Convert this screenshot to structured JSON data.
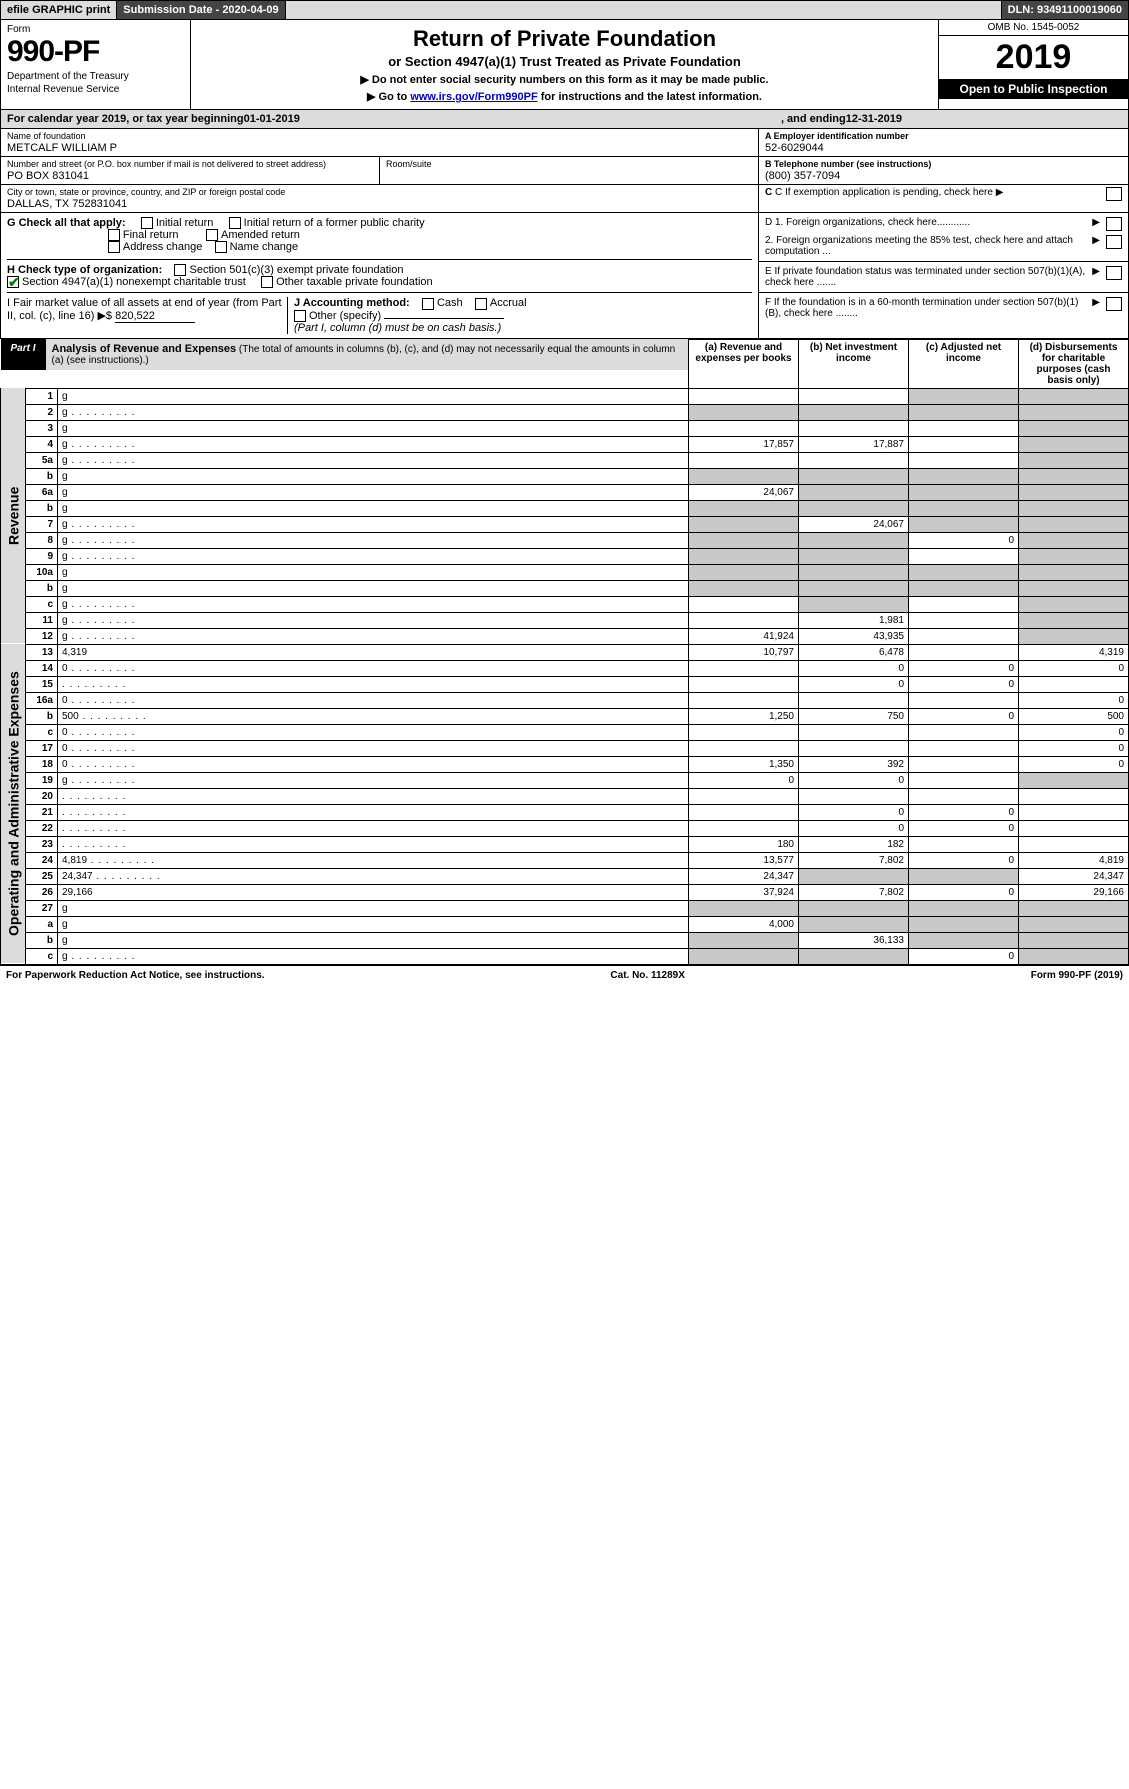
{
  "topbar": {
    "efile": "efile GRAPHIC print",
    "submission": "Submission Date - 2020-04-09",
    "dln": "DLN: 93491100019060"
  },
  "header": {
    "form_label": "Form",
    "form_number": "990-PF",
    "dept1": "Department of the Treasury",
    "dept2": "Internal Revenue Service",
    "title": "Return of Private Foundation",
    "subtitle": "or Section 4947(a)(1) Trust Treated as Private Foundation",
    "bullet1": "▶ Do not enter social security numbers on this form as it may be made public.",
    "bullet2_pre": "▶ Go to ",
    "bullet2_link": "www.irs.gov/Form990PF",
    "bullet2_post": " for instructions and the latest information.",
    "omb": "OMB No. 1545-0052",
    "year": "2019",
    "open": "Open to Public Inspection"
  },
  "cal": {
    "pre": "For calendar year 2019, or tax year beginning ",
    "begin": "01-01-2019",
    "mid": " , and ending ",
    "end": "12-31-2019"
  },
  "ident": {
    "name_label": "Name of foundation",
    "name": "METCALF WILLIAM P",
    "addr_label": "Number and street (or P.O. box number if mail is not delivered to street address)",
    "addr": "PO BOX 831041",
    "room_label": "Room/suite",
    "city_label": "City or town, state or province, country, and ZIP or foreign postal code",
    "city": "DALLAS, TX  752831041",
    "a_label": "A Employer identification number",
    "a_val": "52-6029044",
    "b_label": "B Telephone number (see instructions)",
    "b_val": "(800) 357-7094",
    "c_label": "C If exemption application is pending, check here"
  },
  "checks": {
    "g_label": "G Check all that apply:",
    "g_items": [
      "Initial return",
      "Initial return of a former public charity",
      "Final return",
      "Amended return",
      "Address change",
      "Name change"
    ],
    "h_label": "H Check type of organization:",
    "h1": "Section 501(c)(3) exempt private foundation",
    "h2": "Section 4947(a)(1) nonexempt charitable trust",
    "h3": "Other taxable private foundation",
    "i_label": "I Fair market value of all assets at end of year (from Part II, col. (c), line 16) ▶$ ",
    "i_val": "820,522",
    "j_label": "J Accounting method:",
    "j_cash": "Cash",
    "j_accrual": "Accrual",
    "j_other": "Other (specify)",
    "j_note": "(Part I, column (d) must be on cash basis.)",
    "d1": "D 1. Foreign organizations, check here............",
    "d2": "2. Foreign organizations meeting the 85% test, check here and attach computation ...",
    "e": "E  If private foundation status was terminated under section 507(b)(1)(A), check here .......",
    "f": "F  If the foundation is in a 60-month termination under section 507(b)(1)(B), check here ........"
  },
  "part1": {
    "tag": "Part I",
    "title": "Analysis of Revenue and Expenses",
    "title_note": " (The total of amounts in columns (b), (c), and (d) may not necessarily equal the amounts in column (a) (see instructions).)",
    "col_a": "(a)   Revenue and expenses per books",
    "col_b": "(b)  Net investment income",
    "col_c": "(c)  Adjusted net income",
    "col_d": "(d)  Disbursements for charitable purposes (cash basis only)"
  },
  "side_labels": {
    "revenue": "Revenue",
    "expenses": "Operating and Administrative Expenses"
  },
  "rows": [
    {
      "n": "1",
      "d": "g",
      "a": "",
      "b": "",
      "c": "g"
    },
    {
      "n": "2",
      "d": "g",
      "dots": true,
      "a": "g",
      "b": "g",
      "c": "g"
    },
    {
      "n": "3",
      "d": "g",
      "a": "",
      "b": "",
      "c": ""
    },
    {
      "n": "4",
      "d": "g",
      "dots": true,
      "a": "17,857",
      "b": "17,887",
      "c": ""
    },
    {
      "n": "5a",
      "d": "g",
      "dots": true,
      "a": "",
      "b": "",
      "c": ""
    },
    {
      "n": "b",
      "d": "g",
      "a": "g",
      "b": "g",
      "c": "g"
    },
    {
      "n": "6a",
      "d": "g",
      "a": "24,067",
      "b": "g",
      "c": "g"
    },
    {
      "n": "b",
      "d": "g",
      "a": "g",
      "b": "g",
      "c": "g"
    },
    {
      "n": "7",
      "d": "g",
      "dots": true,
      "a": "g",
      "b": "24,067",
      "c": "g"
    },
    {
      "n": "8",
      "d": "g",
      "dots": true,
      "a": "g",
      "b": "g",
      "c": "0"
    },
    {
      "n": "9",
      "d": "g",
      "dots": true,
      "a": "g",
      "b": "g",
      "c": ""
    },
    {
      "n": "10a",
      "d": "g",
      "a": "g",
      "b": "g",
      "c": "g"
    },
    {
      "n": "b",
      "d": "g",
      "a": "g",
      "b": "g",
      "c": "g"
    },
    {
      "n": "c",
      "d": "g",
      "dots": true,
      "a": "",
      "b": "g",
      "c": ""
    },
    {
      "n": "11",
      "d": "g",
      "dots": true,
      "a": "",
      "b": "1,981",
      "c": ""
    },
    {
      "n": "12",
      "d": "g",
      "dots": true,
      "a": "41,924",
      "b": "43,935",
      "c": ""
    },
    {
      "n": "13",
      "d": "4,319",
      "a": "10,797",
      "b": "6,478",
      "c": ""
    },
    {
      "n": "14",
      "d": "0",
      "dots": true,
      "a": "",
      "b": "0",
      "c": "0"
    },
    {
      "n": "15",
      "d": "",
      "dots": true,
      "a": "",
      "b": "0",
      "c": "0"
    },
    {
      "n": "16a",
      "d": "0",
      "dots": true,
      "a": "",
      "b": "",
      "c": ""
    },
    {
      "n": "b",
      "d": "500",
      "dots": true,
      "a": "1,250",
      "b": "750",
      "c": "0"
    },
    {
      "n": "c",
      "d": "0",
      "dots": true,
      "a": "",
      "b": "",
      "c": ""
    },
    {
      "n": "17",
      "d": "0",
      "dots": true,
      "a": "",
      "b": "",
      "c": ""
    },
    {
      "n": "18",
      "d": "0",
      "dots": true,
      "a": "1,350",
      "b": "392",
      "c": ""
    },
    {
      "n": "19",
      "d": "g",
      "dots": true,
      "a": "0",
      "b": "0",
      "c": ""
    },
    {
      "n": "20",
      "d": "",
      "dots": true,
      "a": "",
      "b": "",
      "c": ""
    },
    {
      "n": "21",
      "d": "",
      "dots": true,
      "a": "",
      "b": "0",
      "c": "0"
    },
    {
      "n": "22",
      "d": "",
      "dots": true,
      "a": "",
      "b": "0",
      "c": "0"
    },
    {
      "n": "23",
      "d": "",
      "dots": true,
      "a": "180",
      "b": "182",
      "c": ""
    },
    {
      "n": "24",
      "d": "4,819",
      "dots": true,
      "a": "13,577",
      "b": "7,802",
      "c": "0"
    },
    {
      "n": "25",
      "d": "24,347",
      "dots": true,
      "a": "24,347",
      "b": "g",
      "c": "g"
    },
    {
      "n": "26",
      "d": "29,166",
      "a": "37,924",
      "b": "7,802",
      "c": "0"
    },
    {
      "n": "27",
      "d": "g",
      "a": "g",
      "b": "g",
      "c": "g"
    },
    {
      "n": "a",
      "d": "g",
      "a": "4,000",
      "b": "g",
      "c": "g"
    },
    {
      "n": "b",
      "d": "g",
      "a": "g",
      "b": "36,133",
      "c": "g"
    },
    {
      "n": "c",
      "d": "g",
      "dots": true,
      "a": "g",
      "b": "g",
      "c": "0"
    }
  ],
  "footer": {
    "left": "For Paperwork Reduction Act Notice, see instructions.",
    "mid": "Cat. No. 11289X",
    "right": "Form 990-PF (2019)"
  }
}
